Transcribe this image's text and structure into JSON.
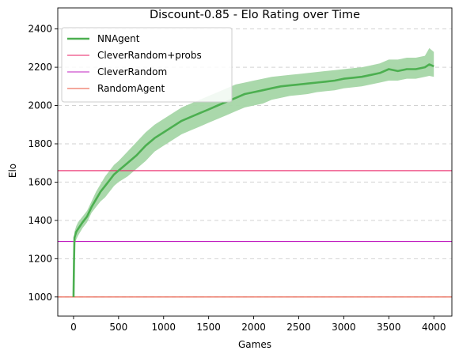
{
  "chart_data": {
    "type": "line",
    "title": "Discount-0.85 - Elo Rating over Time",
    "xlabel": "Games",
    "ylabel": "Elo",
    "xlim": [
      -175,
      4200
    ],
    "ylim": [
      900,
      2510
    ],
    "xticks": [
      0,
      500,
      1000,
      1500,
      2000,
      2500,
      3000,
      3500,
      4000
    ],
    "yticks": [
      1000,
      1200,
      1400,
      1600,
      1800,
      2000,
      2200,
      2400
    ],
    "grid": "y-dashed",
    "legend_position": "upper left",
    "series": [
      {
        "name": "NNAgent",
        "kind": "line_with_band",
        "color": "#4caf50",
        "band_color": "#a5d6a7",
        "x": [
          0,
          5,
          10,
          30,
          50,
          100,
          150,
          200,
          250,
          300,
          350,
          400,
          450,
          500,
          600,
          700,
          800,
          900,
          1000,
          1100,
          1200,
          1300,
          1400,
          1500,
          1600,
          1700,
          1800,
          1900,
          2000,
          2100,
          2200,
          2300,
          2400,
          2500,
          2600,
          2700,
          2800,
          2900,
          3000,
          3100,
          3200,
          3300,
          3400,
          3500,
          3600,
          3700,
          3800,
          3900,
          3950,
          4000
        ],
        "y": [
          1000,
          1180,
          1310,
          1340,
          1355,
          1390,
          1420,
          1470,
          1510,
          1550,
          1580,
          1610,
          1640,
          1660,
          1700,
          1740,
          1790,
          1830,
          1860,
          1890,
          1920,
          1940,
          1960,
          1980,
          2000,
          2020,
          2040,
          2060,
          2070,
          2080,
          2090,
          2100,
          2105,
          2110,
          2115,
          2120,
          2125,
          2130,
          2140,
          2145,
          2150,
          2160,
          2170,
          2190,
          2180,
          2190,
          2190,
          2200,
          2215,
          2205
        ],
        "lower": [
          1000,
          1160,
          1270,
          1300,
          1320,
          1360,
          1390,
          1440,
          1470,
          1500,
          1520,
          1550,
          1580,
          1600,
          1630,
          1670,
          1710,
          1760,
          1790,
          1820,
          1850,
          1870,
          1890,
          1910,
          1930,
          1950,
          1970,
          1990,
          2000,
          2010,
          2030,
          2040,
          2050,
          2055,
          2060,
          2070,
          2075,
          2080,
          2090,
          2095,
          2100,
          2110,
          2120,
          2130,
          2130,
          2140,
          2140,
          2150,
          2155,
          2150
        ],
        "upper": [
          1000,
          1200,
          1340,
          1370,
          1390,
          1420,
          1450,
          1500,
          1550,
          1590,
          1630,
          1660,
          1690,
          1710,
          1760,
          1810,
          1860,
          1900,
          1930,
          1960,
          1990,
          2010,
          2030,
          2050,
          2070,
          2090,
          2110,
          2120,
          2130,
          2140,
          2150,
          2155,
          2160,
          2165,
          2170,
          2175,
          2180,
          2185,
          2190,
          2195,
          2200,
          2210,
          2220,
          2240,
          2240,
          2250,
          2250,
          2260,
          2300,
          2280
        ]
      },
      {
        "name": "CleverRandom+probs",
        "kind": "hline",
        "value": 1660,
        "color": "#e91e63"
      },
      {
        "name": "CleverRandom",
        "kind": "hline",
        "value": 1290,
        "color": "#c020c0"
      },
      {
        "name": "RandomAgent",
        "kind": "hline",
        "value": 1000,
        "color": "#e8503a"
      }
    ]
  }
}
